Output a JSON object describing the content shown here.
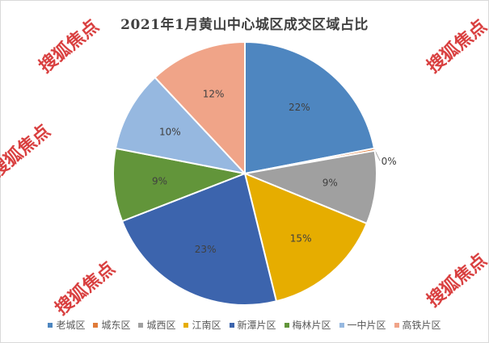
{
  "chart_data": {
    "type": "pie",
    "title": "2021年1月黄山中心城区成交区域占比",
    "categories": [
      "老城区",
      "城东区",
      "城西区",
      "江南区",
      "新潭片区",
      "梅林片区",
      "一中片区",
      "高铁片区"
    ],
    "values": [
      22,
      0.3,
      9,
      15,
      23,
      9,
      10,
      12
    ],
    "labels": [
      "22%",
      "0%",
      "9%",
      "15%",
      "23%",
      "9%",
      "10%",
      "12%"
    ],
    "colors": [
      "#4e86c0",
      "#e07b39",
      "#a0a0a0",
      "#e6ad00",
      "#3c64ad",
      "#62953a",
      "#96b8e0",
      "#f0a488"
    ],
    "legend_position": "bottom",
    "start_angle": "12 o'clock, clockwise"
  },
  "watermark": {
    "text": "搜狐焦点"
  }
}
